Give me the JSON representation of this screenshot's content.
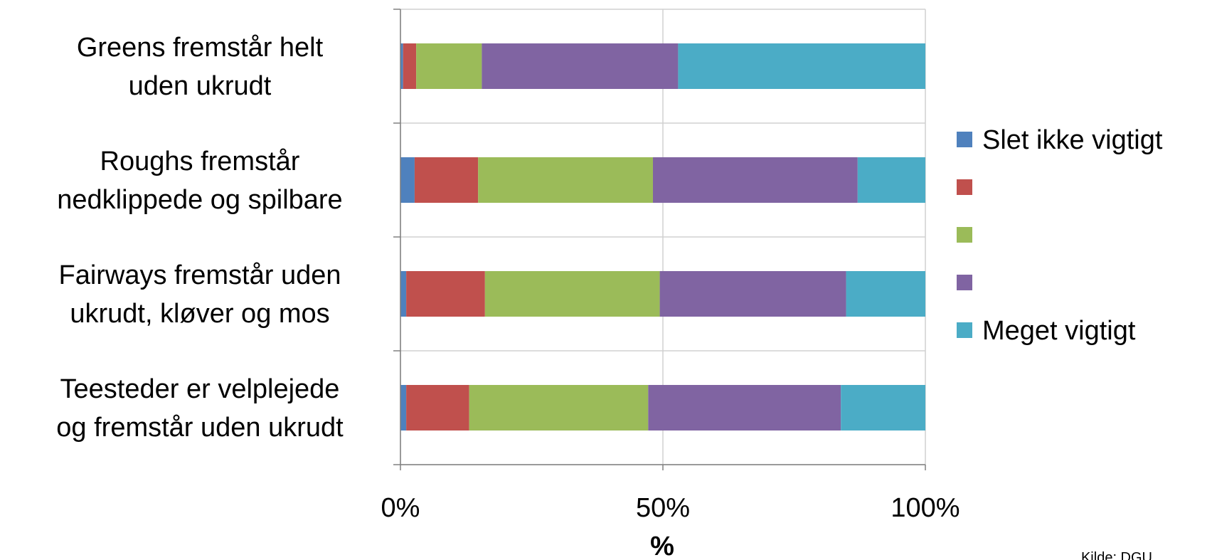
{
  "chart_data": {
    "type": "bar",
    "orientation": "horizontal",
    "stacked": "percent",
    "categories": [
      [
        "Greens fremstår helt",
        "uden ukrudt"
      ],
      [
        "Roughs fremstår",
        "nedklippede og spilbare"
      ],
      [
        "Fairways fremstår uden",
        "ukrudt, kløver og mos"
      ],
      [
        "Teesteder er velplejede",
        "og fremstår uden ukrudt"
      ]
    ],
    "series": [
      {
        "name": "Slet ikke vigtigt",
        "color": "#4F81BD",
        "values": [
          0.5,
          2.7,
          1.1,
          1.1
        ]
      },
      {
        "name": "",
        "color": "#C0504D",
        "values": [
          2.5,
          12.1,
          15.0,
          12.0
        ]
      },
      {
        "name": "",
        "color": "#9BBB59",
        "values": [
          12.5,
          33.3,
          33.3,
          34.1
        ]
      },
      {
        "name": "",
        "color": "#8064A2",
        "values": [
          37.4,
          39.0,
          35.5,
          36.7
        ]
      },
      {
        "name": "Meget vigtigt",
        "color": "#4BACC6",
        "values": [
          47.1,
          12.9,
          15.1,
          16.1
        ]
      }
    ],
    "xlim": [
      0,
      100
    ],
    "xticks": [
      "0%",
      "50%",
      "100%"
    ],
    "xlabel": "%",
    "legend_position": "right",
    "grid": true
  },
  "source_note": "Kilde: DGU"
}
